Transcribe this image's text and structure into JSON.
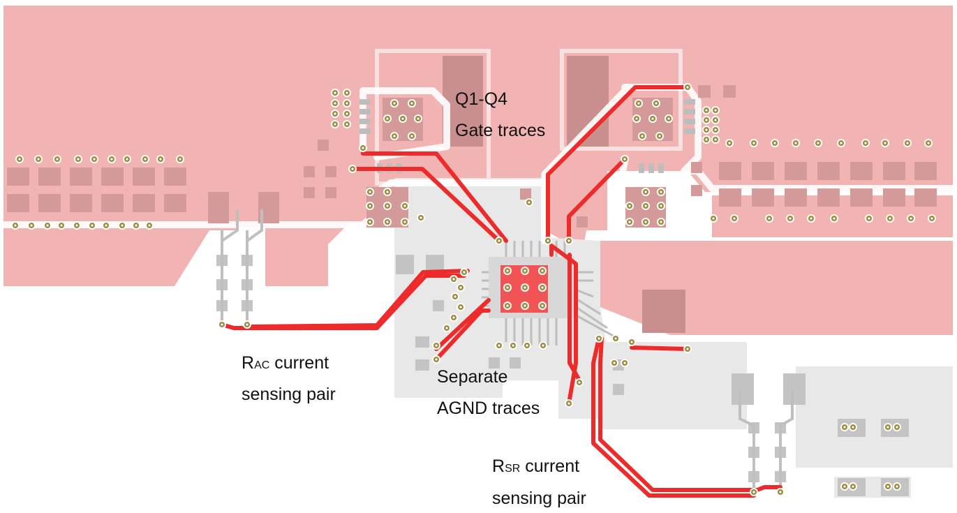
{
  "colors": {
    "copper_pour": "#f2b3b3",
    "copper_pour_dark": "#d99a9a",
    "component_body": "#c98f8f",
    "silk_outline": "#ffffff",
    "gray_pour": "#e6e6e6",
    "gray_pad": "#c7c7c7",
    "trace_red": "#ee2b2b",
    "via_ring": "#9a8a3a",
    "via_hole": "#ffffff",
    "ic_pad": "#f05454"
  },
  "labels": {
    "gate_traces": {
      "line1": "Q1-Q4",
      "line2": "Gate traces"
    },
    "rac": {
      "main": "R",
      "sub": "AC",
      "rest": " current",
      "line2": "sensing pair"
    },
    "agnd": {
      "line1": "Separate",
      "line2": "AGND traces"
    },
    "rsr": {
      "main": "R",
      "sub": "SR",
      "rest": " current",
      "line2": "sensing pair"
    }
  },
  "icons": {
    "via": "via-icon",
    "pad": "pad-icon",
    "ic": "qfn-ic-icon"
  }
}
